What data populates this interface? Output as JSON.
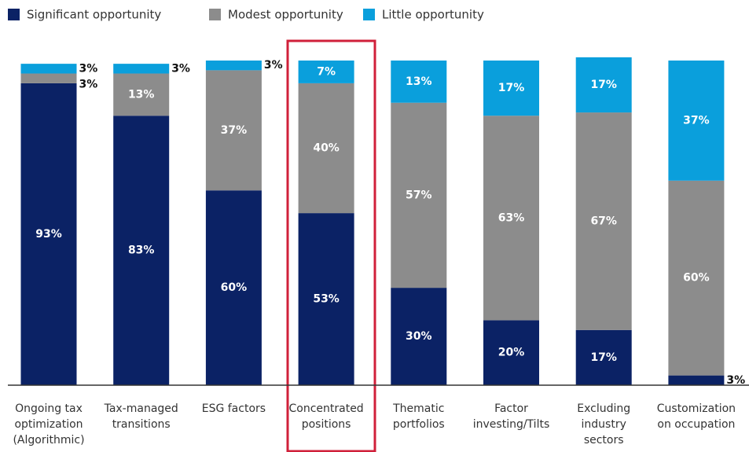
{
  "chart_data": {
    "type": "stacked_bar",
    "categories": [
      [
        "Ongoing tax",
        "optimization",
        "(Algorithmic)"
      ],
      [
        "Tax-managed",
        "transitions"
      ],
      [
        "ESG factors"
      ],
      [
        "Concentrated",
        "positions"
      ],
      [
        "Thematic",
        "portfolios"
      ],
      [
        "Factor",
        "investing/Tilts"
      ],
      [
        "Excluding",
        "industry",
        "sectors"
      ],
      [
        "Customization",
        "on occupation"
      ]
    ],
    "series": [
      {
        "name": "Significant opportunity",
        "color": "#0b2265",
        "values": [
          93,
          83,
          60,
          53,
          30,
          20,
          17,
          3
        ],
        "value_labels": [
          "93%",
          "83%",
          "60%",
          "53%",
          "30%",
          "20%",
          "17%",
          "3%"
        ]
      },
      {
        "name": "Modest opportunity",
        "color": "#8c8c8c",
        "values": [
          3,
          13,
          37,
          40,
          57,
          63,
          67,
          60
        ],
        "value_labels": [
          "3%",
          "13%",
          "37%",
          "40%",
          "57%",
          "63%",
          "67%",
          "60%"
        ]
      },
      {
        "name": "Little opportunity",
        "color": "#0a9fdc",
        "values": [
          3,
          3,
          3,
          7,
          13,
          17,
          17,
          37
        ],
        "value_labels": [
          "3%",
          "3%",
          "3%",
          "7%",
          "13%",
          "17%",
          "17%",
          "37%"
        ]
      }
    ],
    "ylim": [
      0,
      100
    ],
    "legend": "top-left"
  }
}
